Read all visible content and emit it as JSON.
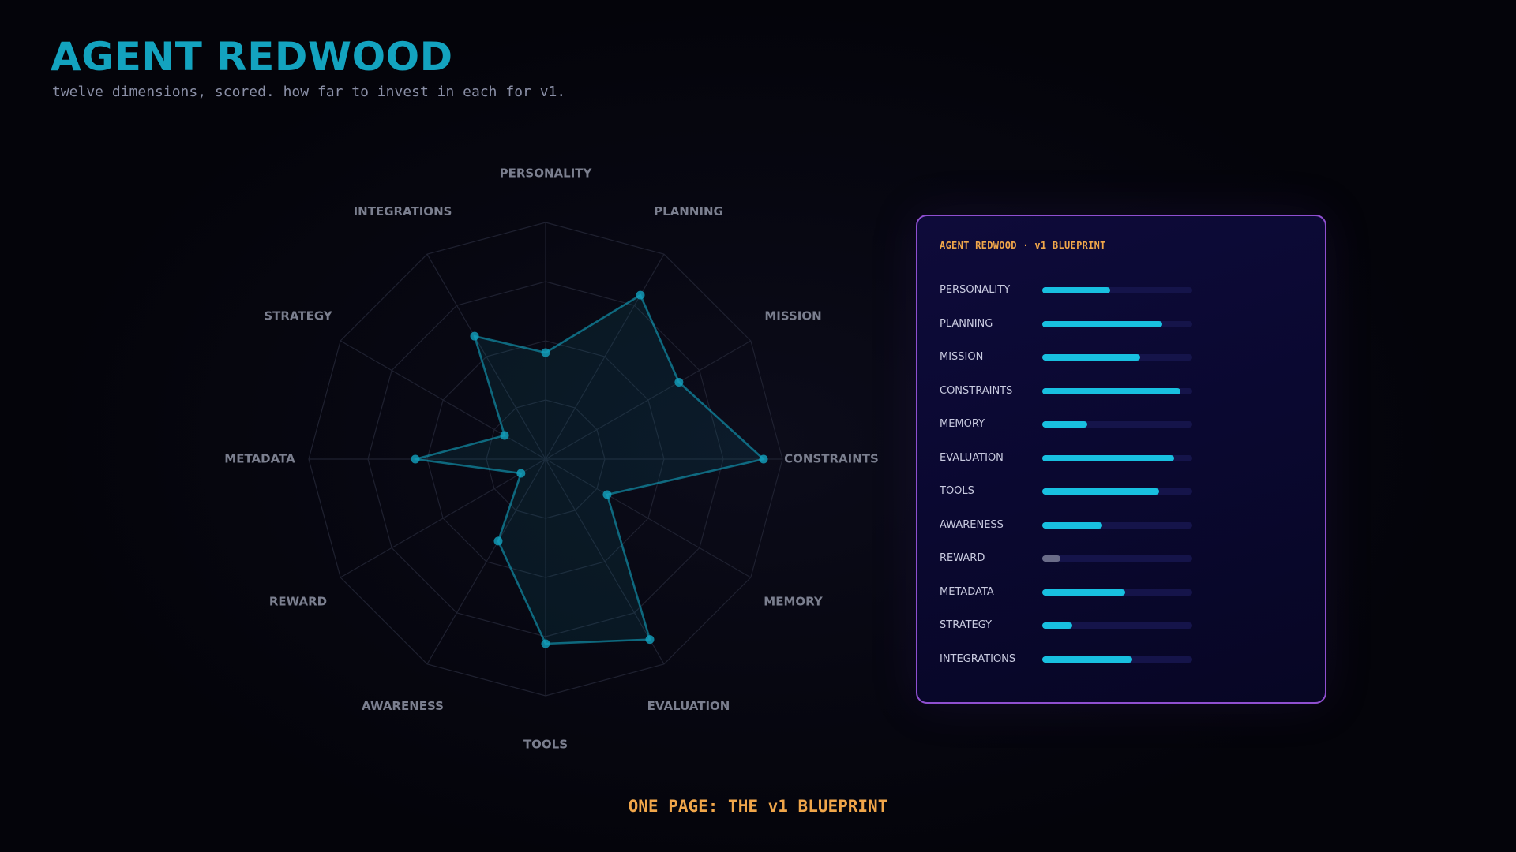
{
  "header": {
    "title": "AGENT REDWOOD",
    "subtitle": "twelve dimensions, scored. how far to invest in each for v1."
  },
  "chart_data": {
    "type": "radar",
    "scale_max": 1.0,
    "grid_levels": 4,
    "axes": [
      "PERSONALITY",
      "PLANNING",
      "MISSION",
      "CONSTRAINTS",
      "MEMORY",
      "EVALUATION",
      "TOOLS",
      "AWARENESS",
      "REWARD",
      "METADATA",
      "STRATEGY",
      "INTEGRATIONS"
    ],
    "values": [
      0.45,
      0.8,
      0.65,
      0.92,
      0.3,
      0.88,
      0.78,
      0.4,
      0.12,
      0.55,
      0.2,
      0.6
    ],
    "colors": {
      "series": "#13a3bf",
      "bar": "#18c0e0",
      "bar_low": "#6a6c88"
    }
  },
  "panel": {
    "title": "AGENT REDWOOD · v1 BLUEPRINT"
  },
  "footer": {
    "text": "ONE PAGE: THE v1 BLUEPRINT"
  }
}
